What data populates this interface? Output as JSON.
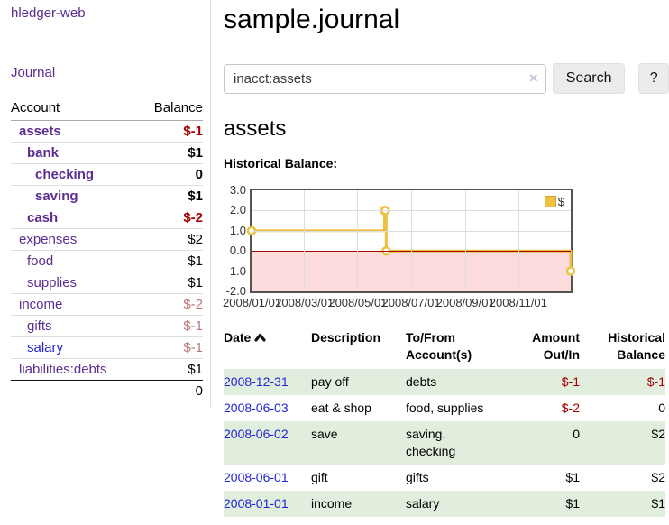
{
  "colors": {
    "purple": "#5c2d91",
    "link-blue": "#2424d6",
    "neg-strong": "#a40000",
    "neg-soft": "#b97979",
    "row-green": "#e2eedd",
    "series-gold": "#edc240",
    "neg-region": "#fcdcdc",
    "zero-line": "#a40000",
    "plot-border": "#545454"
  },
  "sidebar": {
    "app_title": "hledger-web",
    "nav": {
      "journal": "Journal"
    },
    "table": {
      "account_header": "Account",
      "balance_header": "Balance"
    },
    "accounts": [
      {
        "name": "assets",
        "depth": 0,
        "bold": true,
        "balance": "$-1",
        "negative": "strong",
        "link_blue": false
      },
      {
        "name": "bank",
        "depth": 1,
        "bold": true,
        "balance": "$1",
        "negative": "none",
        "link_blue": false
      },
      {
        "name": "checking",
        "depth": 2,
        "bold": true,
        "balance": "0",
        "negative": "none",
        "link_blue": false
      },
      {
        "name": "saving",
        "depth": 2,
        "bold": true,
        "balance": "$1",
        "negative": "none",
        "link_blue": false
      },
      {
        "name": "cash",
        "depth": 1,
        "bold": true,
        "balance": "$-2",
        "negative": "strong",
        "link_blue": false
      },
      {
        "name": "expenses",
        "depth": 0,
        "bold": false,
        "balance": "$2",
        "negative": "none",
        "link_blue": false
      },
      {
        "name": "food",
        "depth": 1,
        "bold": false,
        "balance": "$1",
        "negative": "none",
        "link_blue": false
      },
      {
        "name": "supplies",
        "depth": 1,
        "bold": false,
        "balance": "$1",
        "negative": "none",
        "link_blue": false
      },
      {
        "name": "income",
        "depth": 0,
        "bold": false,
        "balance": "$-2",
        "negative": "soft",
        "link_blue": false
      },
      {
        "name": "gifts",
        "depth": 1,
        "bold": false,
        "balance": "$-1",
        "negative": "soft",
        "link_blue": false
      },
      {
        "name": "salary",
        "depth": 1,
        "bold": false,
        "balance": "$-1",
        "negative": "soft",
        "link_blue": true
      },
      {
        "name": "liabilities:debts",
        "depth": 0,
        "bold": false,
        "balance": "$1",
        "negative": "none",
        "link_blue": false
      }
    ],
    "total": "0"
  },
  "main": {
    "title": "sample.journal",
    "search": {
      "value": "inacct:assets",
      "clear_icon": "×",
      "button_label": "Search",
      "help_label": "?"
    },
    "account_heading": "assets",
    "chart_title": "Historical Balance:"
  },
  "chart_data": {
    "type": "line",
    "step": true,
    "title": "Historical Balance",
    "legend_label": "$",
    "legend_position": "top-right",
    "series": [
      {
        "name": "$",
        "color": "#edc240",
        "points": [
          {
            "date": "2008-01-01",
            "value": 1
          },
          {
            "date": "2008-06-01",
            "value": 2
          },
          {
            "date": "2008-06-02",
            "value": 2
          },
          {
            "date": "2008-06-03",
            "value": 0
          },
          {
            "date": "2008-12-31",
            "value": -1
          }
        ]
      }
    ],
    "xrange": [
      "2008-01-01",
      "2008-12-31"
    ],
    "ylim": [
      -2,
      3
    ],
    "yticks": [
      "3.0",
      "2.0",
      "1.0",
      "0.0",
      "-1.0",
      "-2.0"
    ],
    "xticks": [
      "2008/01/01",
      "2008/03/01",
      "2008/05/01",
      "2008/07/01",
      "2008/09/01",
      "2008/11/01"
    ],
    "grid": true,
    "negative_region": true
  },
  "register": {
    "headers": {
      "date": "Date",
      "description": "Description",
      "accounts_line1": "To/From",
      "accounts_line2": "Account(s)",
      "amount_line1": "Amount",
      "amount_line2": "Out/In",
      "balance_line1": "Historical",
      "balance_line2": "Balance"
    },
    "rows": [
      {
        "date": "2008-12-31",
        "description": "pay off",
        "accounts": "debts",
        "amount": "$-1",
        "amount_negative": true,
        "balance": "$-1",
        "balance_negative": true
      },
      {
        "date": "2008-06-03",
        "description": "eat & shop",
        "accounts": "food, supplies",
        "amount": "$-2",
        "amount_negative": true,
        "balance": "0",
        "balance_negative": false
      },
      {
        "date": "2008-06-02",
        "description": "save",
        "accounts": "saving, checking",
        "amount": "0",
        "amount_negative": false,
        "balance": "$2",
        "balance_negative": false
      },
      {
        "date": "2008-06-01",
        "description": "gift",
        "accounts": "gifts",
        "amount": "$1",
        "amount_negative": false,
        "balance": "$2",
        "balance_negative": false
      },
      {
        "date": "2008-01-01",
        "description": "income",
        "accounts": "salary",
        "amount": "$1",
        "amount_negative": false,
        "balance": "$1",
        "balance_negative": false
      }
    ]
  }
}
